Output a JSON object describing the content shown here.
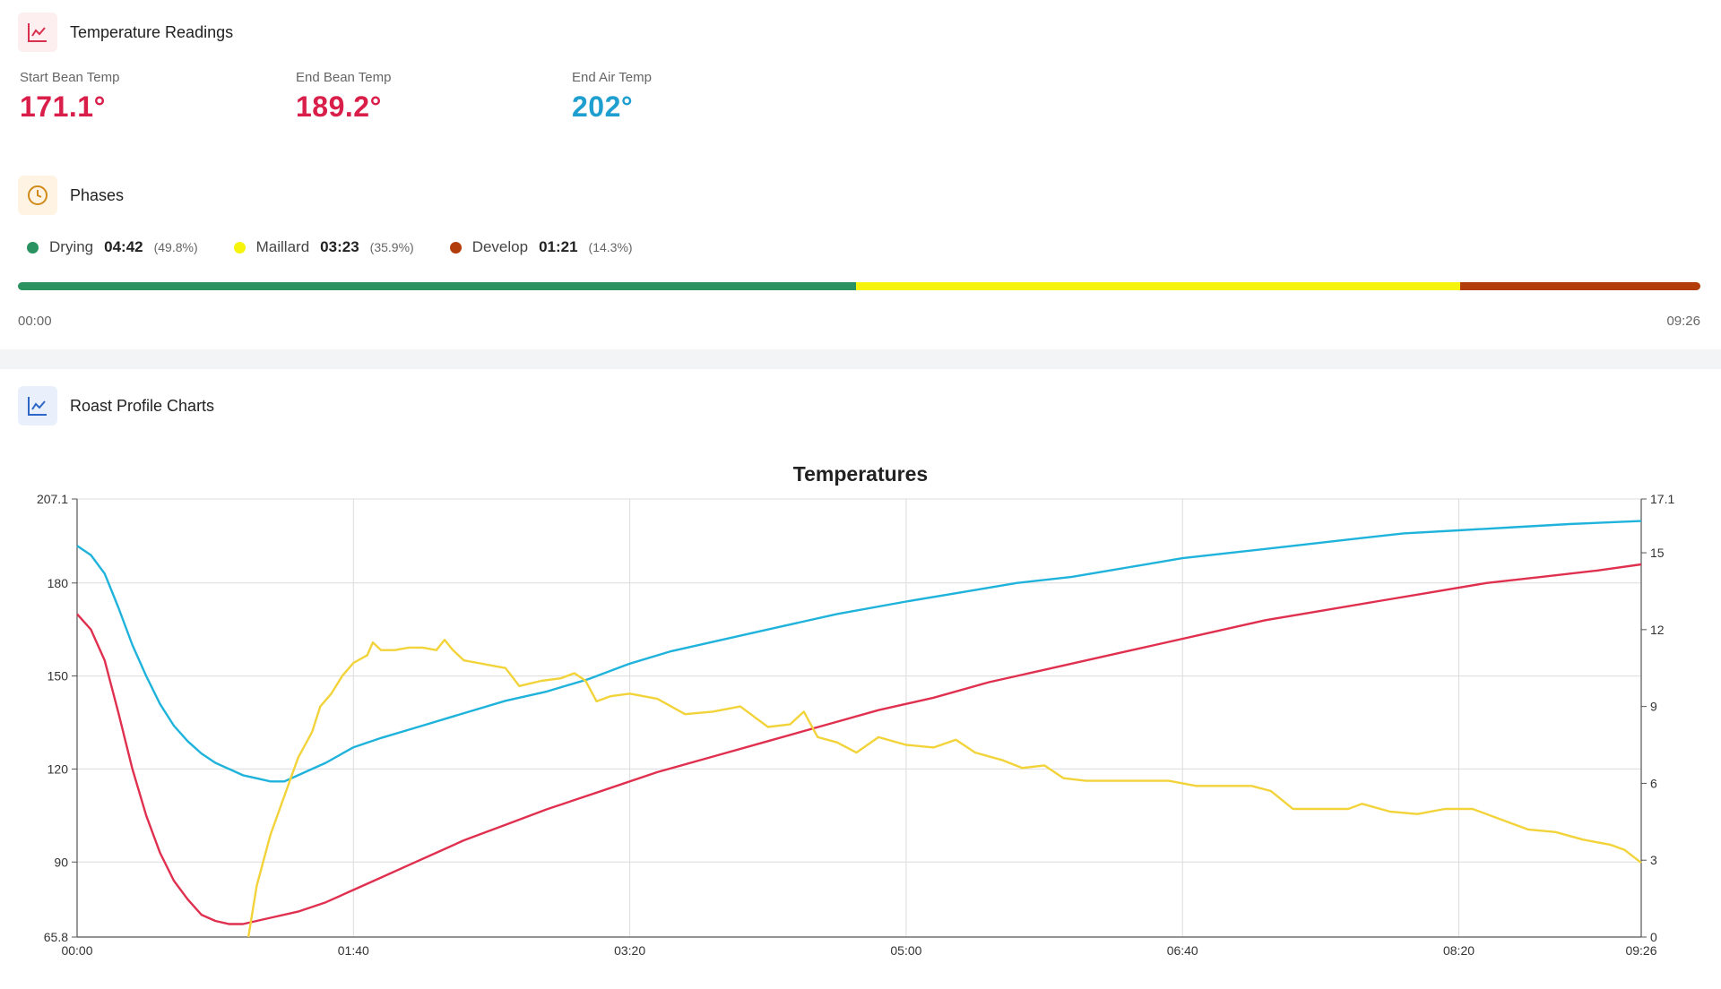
{
  "temperature_readings": {
    "title": "Temperature Readings",
    "icon": "line-chart-icon",
    "stats": [
      {
        "label": "Start Bean Temp",
        "value": "171.1°",
        "color": "#d91e4a"
      },
      {
        "label": "End Bean Temp",
        "value": "189.2°",
        "color": "#d91e4a"
      },
      {
        "label": "End Air Temp",
        "value": "202°",
        "color": "#1f9fd0"
      }
    ]
  },
  "phases": {
    "title": "Phases",
    "icon": "clock-icon",
    "items": [
      {
        "name": "Drying",
        "time": "04:42",
        "pct": "(49.8%)",
        "fraction": 0.498,
        "color": "#2a9260"
      },
      {
        "name": "Maillard",
        "time": "03:23",
        "pct": "(35.9%)",
        "fraction": 0.359,
        "color": "#f6f40c"
      },
      {
        "name": "Develop",
        "time": "01:21",
        "pct": "(14.3%)",
        "fraction": 0.143,
        "color": "#b33c0b"
      }
    ],
    "start_label": "00:00",
    "end_label": "09:26"
  },
  "roast_profile": {
    "title": "Roast Profile Charts",
    "icon": "line-chart-icon"
  },
  "chart_data": {
    "type": "line",
    "title": "Temperatures",
    "xlabel": "",
    "ylabel": "",
    "xlim": [
      0,
      566
    ],
    "ylim": [
      65.8,
      207.1
    ],
    "y2lim": [
      0,
      17.1
    ],
    "x_ticks": [
      0,
      100,
      200,
      300,
      400,
      500,
      566
    ],
    "x_tick_labels": [
      "00:00",
      "01:40",
      "03:20",
      "05:00",
      "06:40",
      "08:20",
      "09:26"
    ],
    "y_ticks": [
      65.8,
      90,
      120,
      150,
      180,
      207.1
    ],
    "y_tick_labels": [
      "65.8",
      "90",
      "120",
      "150",
      "180",
      "207.1"
    ],
    "y2_ticks": [
      0,
      3,
      6,
      9,
      12,
      15,
      17.1
    ],
    "y2_tick_labels": [
      "0",
      "3",
      "6",
      "9",
      "12",
      "15",
      "17.1"
    ],
    "grid": true,
    "series": [
      {
        "color": "#1fb3dc",
        "axis": "left",
        "points": [
          [
            0,
            192
          ],
          [
            5,
            189
          ],
          [
            10,
            183
          ],
          [
            15,
            172
          ],
          [
            20,
            160
          ],
          [
            25,
            150
          ],
          [
            30,
            141
          ],
          [
            35,
            134
          ],
          [
            40,
            129
          ],
          [
            45,
            125
          ],
          [
            50,
            122
          ],
          [
            55,
            120
          ],
          [
            60,
            118
          ],
          [
            65,
            117
          ],
          [
            70,
            116
          ],
          [
            75,
            116
          ],
          [
            80,
            118
          ],
          [
            85,
            120
          ],
          [
            90,
            122
          ],
          [
            100,
            127
          ],
          [
            110,
            130
          ],
          [
            125,
            134
          ],
          [
            140,
            138
          ],
          [
            155,
            142
          ],
          [
            170,
            145
          ],
          [
            185,
            149
          ],
          [
            200,
            154
          ],
          [
            215,
            158
          ],
          [
            235,
            162
          ],
          [
            255,
            166
          ],
          [
            275,
            170
          ],
          [
            300,
            174
          ],
          [
            320,
            177
          ],
          [
            340,
            180
          ],
          [
            360,
            182
          ],
          [
            380,
            185
          ],
          [
            400,
            188
          ],
          [
            420,
            190
          ],
          [
            440,
            192
          ],
          [
            460,
            194
          ],
          [
            480,
            196
          ],
          [
            500,
            197
          ],
          [
            520,
            198
          ],
          [
            540,
            199
          ],
          [
            566,
            200
          ]
        ]
      },
      {
        "color": "#e0304f",
        "axis": "left",
        "points": [
          [
            0,
            170
          ],
          [
            5,
            165
          ],
          [
            10,
            155
          ],
          [
            15,
            138
          ],
          [
            20,
            120
          ],
          [
            25,
            105
          ],
          [
            30,
            93
          ],
          [
            35,
            84
          ],
          [
            40,
            78
          ],
          [
            45,
            73
          ],
          [
            50,
            71
          ],
          [
            55,
            70
          ],
          [
            60,
            70
          ],
          [
            65,
            71
          ],
          [
            70,
            72
          ],
          [
            80,
            74
          ],
          [
            90,
            77
          ],
          [
            100,
            81
          ],
          [
            110,
            85
          ],
          [
            120,
            89
          ],
          [
            130,
            93
          ],
          [
            140,
            97
          ],
          [
            155,
            102
          ],
          [
            170,
            107
          ],
          [
            190,
            113
          ],
          [
            210,
            119
          ],
          [
            230,
            124
          ],
          [
            250,
            129
          ],
          [
            270,
            134
          ],
          [
            290,
            139
          ],
          [
            310,
            143
          ],
          [
            330,
            148
          ],
          [
            350,
            152
          ],
          [
            370,
            156
          ],
          [
            390,
            160
          ],
          [
            410,
            164
          ],
          [
            430,
            168
          ],
          [
            450,
            171
          ],
          [
            470,
            174
          ],
          [
            490,
            177
          ],
          [
            510,
            180
          ],
          [
            530,
            182
          ],
          [
            550,
            184
          ],
          [
            566,
            186
          ]
        ]
      },
      {
        "color": "#f2d33a",
        "axis": "right",
        "points": [
          [
            62,
            0
          ],
          [
            65,
            2
          ],
          [
            70,
            4
          ],
          [
            75,
            5.5
          ],
          [
            80,
            7
          ],
          [
            85,
            8
          ],
          [
            88,
            9
          ],
          [
            92,
            9.5
          ],
          [
            96,
            10.2
          ],
          [
            100,
            10.7
          ],
          [
            105,
            11
          ],
          [
            107,
            11.5
          ],
          [
            110,
            11.2
          ],
          [
            115,
            11.2
          ],
          [
            120,
            11.3
          ],
          [
            125,
            11.3
          ],
          [
            130,
            11.2
          ],
          [
            133,
            11.6
          ],
          [
            136,
            11.2
          ],
          [
            140,
            10.8
          ],
          [
            145,
            10.7
          ],
          [
            150,
            10.6
          ],
          [
            155,
            10.5
          ],
          [
            160,
            9.8
          ],
          [
            168,
            10
          ],
          [
            175,
            10.1
          ],
          [
            180,
            10.3
          ],
          [
            184,
            10
          ],
          [
            188,
            9.2
          ],
          [
            193,
            9.4
          ],
          [
            200,
            9.5
          ],
          [
            210,
            9.3
          ],
          [
            220,
            8.7
          ],
          [
            230,
            8.8
          ],
          [
            240,
            9
          ],
          [
            245,
            8.6
          ],
          [
            250,
            8.2
          ],
          [
            258,
            8.3
          ],
          [
            263,
            8.8
          ],
          [
            268,
            7.8
          ],
          [
            275,
            7.6
          ],
          [
            282,
            7.2
          ],
          [
            290,
            7.8
          ],
          [
            300,
            7.5
          ],
          [
            310,
            7.4
          ],
          [
            318,
            7.7
          ],
          [
            325,
            7.2
          ],
          [
            335,
            6.9
          ],
          [
            342,
            6.6
          ],
          [
            350,
            6.7
          ],
          [
            357,
            6.2
          ],
          [
            365,
            6.1
          ],
          [
            375,
            6.1
          ],
          [
            385,
            6.1
          ],
          [
            395,
            6.1
          ],
          [
            405,
            5.9
          ],
          [
            415,
            5.9
          ],
          [
            425,
            5.9
          ],
          [
            432,
            5.7
          ],
          [
            440,
            5
          ],
          [
            450,
            5
          ],
          [
            460,
            5
          ],
          [
            465,
            5.2
          ],
          [
            475,
            4.9
          ],
          [
            485,
            4.8
          ],
          [
            495,
            5
          ],
          [
            505,
            5
          ],
          [
            515,
            4.6
          ],
          [
            525,
            4.2
          ],
          [
            535,
            4.1
          ],
          [
            545,
            3.8
          ],
          [
            555,
            3.6
          ],
          [
            560,
            3.4
          ],
          [
            566,
            2.9
          ]
        ]
      }
    ]
  }
}
